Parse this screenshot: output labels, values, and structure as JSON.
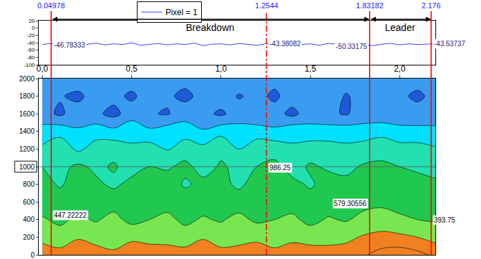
{
  "chart_data": [
    {
      "type": "line",
      "legend": "top",
      "tick_labels": "y",
      "series": [
        {
          "name": "Pixel = 1",
          "color": "#3b3bff",
          "x": [
            0,
            0.05,
            0.1,
            0.15,
            0.2,
            0.25,
            0.3,
            0.35,
            0.4,
            0.45,
            0.5,
            0.55,
            0.6,
            0.65,
            0.7,
            0.75,
            0.8,
            0.85,
            0.9,
            0.95,
            1.0,
            1.05,
            1.1,
            1.15,
            1.2,
            1.25,
            1.3,
            1.35,
            1.4,
            1.45,
            1.5,
            1.55,
            1.6,
            1.65,
            1.7,
            1.75,
            1.8,
            1.85,
            1.9,
            1.95,
            2.0,
            2.05,
            2.1,
            2.15,
            2.2
          ],
          "values": [
            -45,
            -42,
            -47,
            -43,
            -48,
            -44,
            -41,
            -46,
            -43,
            -45,
            -40,
            -47,
            -44,
            -42,
            -46,
            -43,
            -45,
            -41,
            -48,
            -44,
            -43,
            -46,
            -42,
            -45,
            -47,
            -43,
            -44,
            -41,
            -46,
            -45,
            -43,
            -47,
            -42,
            -44,
            -46,
            -43,
            -45,
            -48,
            -44,
            -42,
            -46,
            -43,
            -45,
            -44,
            -43
          ]
        }
      ],
      "xlim": [
        -0.02,
        2.2
      ],
      "ylim": [
        -100,
        20
      ],
      "yticks": [
        20,
        0,
        -20,
        -40,
        -60,
        -80,
        -100
      ],
      "cursors": [
        {
          "x": 0.04978,
          "y": -46.78333,
          "line_style": "solid"
        },
        {
          "x": 1.2544,
          "y": -43.38082,
          "line_style": "dashdot"
        },
        {
          "x": 1.83182,
          "y": -50.33175,
          "line_style": "solid"
        },
        {
          "x": 2.176,
          "y": -43.53737,
          "line_style": "solid"
        }
      ],
      "spans": [
        {
          "text": "Breakdown",
          "from": 0.04978,
          "to": 1.83182
        },
        {
          "text": "Leader",
          "from": 1.83182,
          "to": 2.176
        }
      ]
    },
    {
      "type": "contour",
      "x": [
        0,
        0.1,
        0.2,
        0.3,
        0.4,
        0.5,
        0.6,
        0.7,
        0.8,
        0.9,
        1.0,
        1.1,
        1.2,
        1.3,
        1.4,
        1.5,
        1.6,
        1.7,
        1.8,
        1.9,
        2.0,
        2.1,
        2.2
      ],
      "y": [
        0,
        200,
        400,
        600,
        800,
        1000,
        1200,
        1400,
        1600,
        1800,
        2000
      ],
      "z": [
        [
          6.6,
          6.4,
          6.7,
          6.5,
          6.3,
          6.6,
          6.8,
          6.4,
          6.5,
          6.7,
          6.3,
          6.6,
          6.5,
          6.4,
          6.7,
          6.5,
          6.6,
          6.4,
          6.9,
          7.4,
          7.6,
          7.3,
          6.8
        ],
        [
          5.7,
          5.4,
          5.9,
          5.6,
          5.3,
          5.8,
          5.5,
          5.7,
          5.4,
          5.9,
          5.6,
          5.5,
          5.8,
          5.4,
          5.7,
          5.6,
          5.5,
          5.8,
          6.1,
          6.3,
          6.2,
          6.0,
          5.6
        ],
        [
          5.1,
          4.8,
          5.2,
          4.9,
          5.3,
          4.7,
          5.0,
          5.2,
          4.8,
          5.1,
          4.9,
          5.3,
          4.8,
          5.0,
          5.2,
          4.7,
          5.1,
          4.9,
          5.3,
          5.4,
          5.2,
          5.0,
          4.9
        ],
        [
          4.6,
          4.4,
          4.7,
          4.3,
          4.6,
          4.5,
          4.2,
          4.7,
          4.4,
          4.6,
          4.3,
          4.5,
          4.7,
          4.4,
          4.6,
          4.3,
          4.5,
          4.6,
          4.7,
          4.8,
          4.6,
          4.5,
          4.4
        ],
        [
          4.3,
          3.9,
          4.4,
          4.2,
          3.8,
          4.3,
          4.1,
          4.4,
          3.9,
          4.2,
          4.3,
          3.8,
          4.4,
          4.1,
          4.2,
          3.9,
          4.3,
          4.2,
          4.4,
          4.5,
          4.3,
          4.2,
          4.1
        ],
        [
          4.0,
          3.7,
          4.2,
          3.8,
          4.1,
          3.6,
          4.0,
          3.9,
          4.2,
          3.7,
          4.1,
          3.8,
          4.0,
          4.2,
          3.7,
          4.1,
          3.9,
          3.8,
          4.1,
          4.2,
          4.0,
          3.9,
          3.8
        ],
        [
          3.2,
          3.6,
          2.8,
          3.4,
          3.7,
          3.1,
          3.5,
          2.9,
          3.6,
          3.3,
          3.8,
          3.0,
          3.5,
          3.7,
          3.1,
          3.6,
          3.4,
          3.2,
          3.5,
          3.6,
          3.3,
          3.4,
          3.1
        ],
        [
          2.4,
          2.7,
          2.1,
          2.6,
          2.3,
          2.8,
          2.2,
          2.6,
          2.5,
          2.1,
          2.7,
          2.4,
          2.6,
          2.2,
          2.8,
          2.3,
          2.5,
          2.6,
          2.4,
          2.7,
          2.5,
          2.3,
          2.4
        ],
        [
          1.4,
          0.8,
          1.6,
          1.2,
          0.7,
          1.5,
          1.1,
          0.9,
          1.6,
          1.3,
          0.8,
          1.5,
          1.0,
          1.4,
          0.7,
          1.6,
          1.2,
          0.9,
          1.5,
          1.3,
          1.1,
          1.4,
          1.2
        ],
        [
          1.5,
          1.1,
          0.7,
          1.6,
          1.3,
          0.8,
          1.5,
          1.2,
          0.7,
          1.4,
          1.6,
          0.9,
          1.3,
          0.8,
          1.5,
          1.2,
          1.6,
          0.9,
          1.4,
          1.5,
          1.2,
          0.8,
          1.3
        ],
        [
          1.7,
          1.4,
          1.8,
          1.2,
          1.6,
          1.5,
          1.3,
          1.8,
          1.4,
          1.6,
          1.2,
          1.7,
          1.5,
          1.3,
          1.8,
          1.4,
          1.6,
          1.5,
          1.3,
          1.7,
          1.6,
          1.4,
          1.5
        ]
      ],
      "zlim": [
        0,
        8
      ],
      "zlevels": [
        1,
        2,
        3,
        4,
        5,
        6,
        7
      ],
      "colors": [
        "#1e5ad8",
        "#3a9cf0",
        "#00e0ff",
        "#22e0b0",
        "#20c850",
        "#78e650",
        "#f0f020",
        "#f08020"
      ],
      "xlim": [
        -0.02,
        2.2
      ],
      "xticks": [
        {
          "value": 0,
          "label": "0,0"
        },
        {
          "value": 0.5,
          "label": "0,5"
        },
        {
          "value": 1,
          "label": "1,0"
        },
        {
          "value": 1.5,
          "label": "1,5"
        },
        {
          "value": 2,
          "label": "2,0"
        }
      ],
      "ylim": [
        0,
        2000
      ],
      "yticks": [
        0,
        200,
        400,
        600,
        800,
        1000,
        1200,
        1400,
        1600,
        1800,
        2000
      ],
      "hline": 1000,
      "readouts": [
        {
          "x": 0.04978,
          "y": 447.22222
        },
        {
          "x": 1.2544,
          "y": 986.25
        },
        {
          "x": 1.83182,
          "y": 579.30556
        },
        {
          "x": 2.176,
          "y": 393.75
        }
      ]
    }
  ]
}
